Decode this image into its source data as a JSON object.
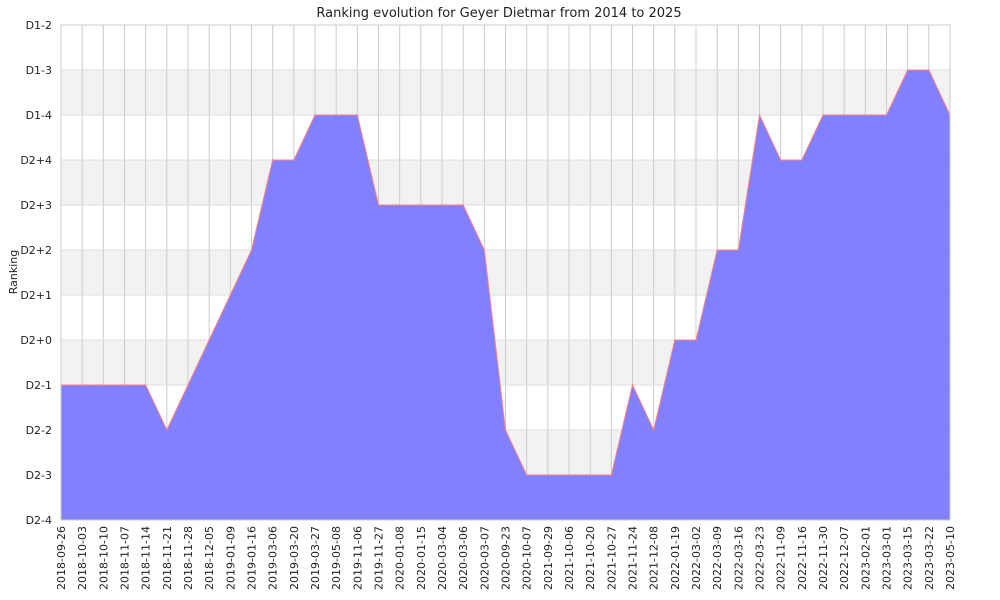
{
  "chart_data": {
    "type": "area",
    "title": "Ranking evolution for Geyer Dietmar from 2014 to 2025",
    "ylabel": "Ranking",
    "xlabel": "",
    "y_levels": [
      "D2-4",
      "D2-3",
      "D2-2",
      "D2-1",
      "D2+0",
      "D2+1",
      "D2+2",
      "D2+3",
      "D2+4",
      "D1-4",
      "D1-3",
      "D1-2"
    ],
    "categories": [
      "2018-09-26",
      "2018-10-03",
      "2018-10-10",
      "2018-11-07",
      "2018-11-14",
      "2018-11-21",
      "2018-11-28",
      "2018-12-05",
      "2019-01-09",
      "2019-01-16",
      "2019-03-06",
      "2019-03-20",
      "2019-03-27",
      "2019-05-08",
      "2019-11-06",
      "2019-11-27",
      "2020-01-08",
      "2020-01-15",
      "2020-03-04",
      "2020-03-06",
      "2020-03-07",
      "2020-09-23",
      "2020-10-07",
      "2021-09-29",
      "2021-10-06",
      "2021-10-20",
      "2021-10-27",
      "2021-11-24",
      "2021-12-08",
      "2022-01-19",
      "2022-03-02",
      "2022-03-09",
      "2022-03-16",
      "2022-03-23",
      "2022-11-09",
      "2022-11-16",
      "2022-11-30",
      "2022-12-07",
      "2023-02-01",
      "2023-03-01",
      "2023-03-15",
      "2023-03-22",
      "2023-05-10"
    ],
    "values": [
      "D2-1",
      "D2-1",
      "D2-1",
      "D2-1",
      "D2-1",
      "D2-2",
      "D2-1",
      "D2+0",
      "D2+1",
      "D2+2",
      "D2+4",
      "D2+4",
      "D1-4",
      "D1-4",
      "D1-4",
      "D2+3",
      "D2+3",
      "D2+3",
      "D2+3",
      "D2+3",
      "D2+2",
      "D2-2",
      "D2-3",
      "D2-3",
      "D2-3",
      "D2-3",
      "D2-3",
      "D2-1",
      "D2-2",
      "D2+0",
      "D2+0",
      "D2+2",
      "D2+2",
      "D1-4",
      "D2+4",
      "D2+4",
      "D1-4",
      "D1-4",
      "D1-4",
      "D1-4",
      "D1-3",
      "D1-3",
      "D1-4"
    ],
    "grid": true,
    "colors": {
      "fill": "#7a7aff",
      "line": "#ff7f7f",
      "band": "#f2f2f2",
      "grid": "#cccccc"
    }
  }
}
